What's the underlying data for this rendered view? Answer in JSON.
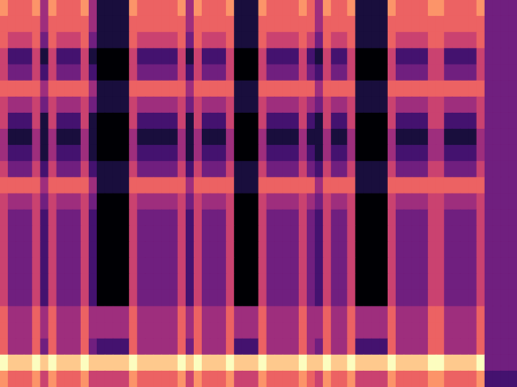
{
  "chart_data": {
    "type": "heatmap",
    "tick_labels": false,
    "zlim": [
      0,
      9
    ],
    "cells": [
      [
        7,
        6,
        6,
        6,
        7,
        4,
        7,
        6,
        6,
        6,
        7,
        4,
        1,
        1,
        1,
        1,
        7,
        6,
        6,
        6,
        6,
        6,
        7,
        4,
        7,
        6,
        6,
        6,
        7,
        1,
        1,
        1,
        7,
        6,
        6,
        6,
        6,
        7,
        6,
        4,
        7,
        6,
        6,
        7,
        1,
        1,
        1,
        1,
        7,
        6,
        6,
        6,
        6,
        7,
        7,
        6,
        6,
        6,
        6,
        7,
        3,
        3,
        3,
        3
      ],
      [
        6,
        6,
        6,
        6,
        6,
        4,
        6,
        6,
        6,
        6,
        6,
        4,
        1,
        1,
        1,
        1,
        6,
        6,
        6,
        6,
        6,
        6,
        6,
        4,
        6,
        6,
        6,
        6,
        6,
        1,
        1,
        1,
        6,
        6,
        6,
        6,
        6,
        6,
        6,
        4,
        6,
        6,
        6,
        6,
        1,
        1,
        1,
        1,
        6,
        6,
        6,
        6,
        6,
        6,
        6,
        6,
        6,
        6,
        6,
        6,
        3,
        3,
        3,
        3
      ],
      [
        6,
        5,
        5,
        5,
        6,
        3,
        6,
        5,
        5,
        5,
        6,
        3,
        1,
        1,
        1,
        1,
        6,
        5,
        5,
        5,
        5,
        5,
        6,
        3,
        6,
        5,
        5,
        5,
        6,
        1,
        1,
        1,
        6,
        5,
        5,
        5,
        5,
        6,
        5,
        3,
        6,
        5,
        5,
        6,
        1,
        1,
        1,
        1,
        6,
        5,
        5,
        5,
        5,
        6,
        6,
        5,
        5,
        5,
        5,
        6,
        3,
        3,
        3,
        3
      ],
      [
        5,
        2,
        2,
        2,
        5,
        1,
        5,
        2,
        2,
        2,
        5,
        1,
        0,
        0,
        0,
        0,
        5,
        2,
        2,
        2,
        2,
        2,
        5,
        1,
        5,
        2,
        2,
        2,
        5,
        0,
        0,
        0,
        5,
        2,
        2,
        2,
        2,
        5,
        2,
        1,
        5,
        2,
        2,
        5,
        0,
        0,
        0,
        0,
        5,
        2,
        2,
        2,
        2,
        5,
        5,
        2,
        2,
        2,
        2,
        5,
        3,
        3,
        3,
        3
      ],
      [
        5,
        3,
        3,
        3,
        5,
        2,
        5,
        3,
        3,
        3,
        5,
        2,
        0,
        0,
        0,
        0,
        5,
        3,
        3,
        3,
        3,
        3,
        5,
        2,
        5,
        3,
        3,
        3,
        5,
        0,
        0,
        0,
        5,
        3,
        3,
        3,
        3,
        5,
        3,
        2,
        5,
        3,
        3,
        5,
        0,
        0,
        0,
        0,
        5,
        3,
        3,
        3,
        3,
        5,
        5,
        3,
        3,
        3,
        3,
        5,
        3,
        3,
        3,
        3
      ],
      [
        6,
        6,
        6,
        6,
        6,
        4,
        6,
        6,
        6,
        6,
        6,
        4,
        1,
        1,
        1,
        1,
        6,
        6,
        6,
        6,
        6,
        6,
        6,
        4,
        6,
        6,
        6,
        6,
        6,
        1,
        1,
        1,
        6,
        6,
        6,
        6,
        6,
        6,
        6,
        4,
        6,
        6,
        6,
        6,
        1,
        1,
        1,
        1,
        6,
        6,
        6,
        6,
        6,
        6,
        6,
        6,
        6,
        6,
        6,
        6,
        3,
        3,
        3,
        3
      ],
      [
        5,
        4,
        4,
        4,
        5,
        3,
        5,
        4,
        4,
        4,
        5,
        3,
        1,
        1,
        1,
        1,
        5,
        4,
        4,
        4,
        4,
        4,
        5,
        3,
        5,
        4,
        4,
        4,
        5,
        1,
        1,
        1,
        5,
        4,
        4,
        4,
        4,
        5,
        4,
        3,
        5,
        4,
        4,
        5,
        1,
        1,
        1,
        1,
        5,
        4,
        4,
        4,
        4,
        5,
        5,
        4,
        4,
        4,
        4,
        5,
        3,
        3,
        3,
        3
      ],
      [
        5,
        2,
        2,
        2,
        5,
        1,
        5,
        2,
        2,
        2,
        5,
        1,
        0,
        0,
        0,
        0,
        5,
        2,
        2,
        2,
        2,
        2,
        5,
        1,
        5,
        2,
        2,
        2,
        5,
        0,
        0,
        0,
        5,
        2,
        2,
        2,
        2,
        5,
        2,
        1,
        5,
        2,
        2,
        5,
        0,
        0,
        0,
        0,
        5,
        2,
        2,
        2,
        2,
        5,
        5,
        2,
        2,
        2,
        2,
        5,
        3,
        3,
        3,
        3
      ],
      [
        4,
        1,
        1,
        1,
        4,
        1,
        4,
        1,
        1,
        1,
        4,
        1,
        0,
        0,
        0,
        0,
        4,
        1,
        1,
        1,
        1,
        1,
        4,
        1,
        4,
        1,
        1,
        1,
        4,
        0,
        0,
        0,
        4,
        1,
        1,
        1,
        1,
        4,
        1,
        1,
        4,
        1,
        1,
        4,
        0,
        0,
        0,
        0,
        4,
        1,
        1,
        1,
        1,
        4,
        4,
        1,
        1,
        1,
        1,
        4,
        3,
        3,
        3,
        3
      ],
      [
        4,
        2,
        2,
        2,
        4,
        1,
        4,
        2,
        2,
        2,
        4,
        1,
        0,
        0,
        0,
        0,
        4,
        2,
        2,
        2,
        2,
        2,
        4,
        1,
        4,
        2,
        2,
        2,
        4,
        0,
        0,
        0,
        4,
        2,
        2,
        2,
        2,
        4,
        2,
        1,
        4,
        2,
        2,
        4,
        0,
        0,
        0,
        0,
        4,
        2,
        2,
        2,
        2,
        4,
        4,
        2,
        2,
        2,
        2,
        4,
        3,
        3,
        3,
        3
      ],
      [
        5,
        3,
        3,
        3,
        5,
        2,
        5,
        3,
        3,
        3,
        5,
        2,
        1,
        1,
        1,
        1,
        5,
        3,
        3,
        3,
        3,
        3,
        5,
        2,
        5,
        3,
        3,
        3,
        5,
        1,
        1,
        1,
        5,
        3,
        3,
        3,
        3,
        5,
        3,
        2,
        5,
        3,
        3,
        5,
        1,
        1,
        1,
        1,
        5,
        3,
        3,
        3,
        3,
        5,
        5,
        3,
        3,
        3,
        3,
        5,
        3,
        3,
        3,
        3
      ],
      [
        6,
        6,
        6,
        6,
        6,
        4,
        6,
        6,
        6,
        6,
        6,
        4,
        1,
        1,
        1,
        1,
        6,
        6,
        6,
        6,
        6,
        6,
        6,
        4,
        6,
        6,
        6,
        6,
        6,
        1,
        1,
        1,
        6,
        6,
        6,
        6,
        6,
        6,
        6,
        4,
        6,
        6,
        6,
        6,
        1,
        1,
        1,
        1,
        6,
        6,
        6,
        6,
        6,
        6,
        6,
        6,
        6,
        6,
        6,
        6,
        3,
        3,
        3,
        3
      ],
      [
        5,
        4,
        4,
        4,
        5,
        3,
        5,
        4,
        4,
        4,
        5,
        3,
        0,
        0,
        0,
        0,
        5,
        4,
        4,
        4,
        4,
        4,
        5,
        3,
        5,
        4,
        4,
        4,
        5,
        0,
        0,
        0,
        5,
        4,
        4,
        4,
        4,
        5,
        4,
        3,
        5,
        4,
        4,
        5,
        0,
        0,
        0,
        0,
        5,
        4,
        4,
        4,
        4,
        5,
        5,
        4,
        4,
        4,
        4,
        5,
        3,
        3,
        3,
        3
      ],
      [
        5,
        3,
        3,
        3,
        5,
        2,
        5,
        3,
        3,
        3,
        5,
        2,
        0,
        0,
        0,
        0,
        5,
        3,
        3,
        3,
        3,
        3,
        5,
        2,
        5,
        3,
        3,
        3,
        5,
        0,
        0,
        0,
        5,
        3,
        3,
        3,
        3,
        5,
        3,
        2,
        5,
        3,
        3,
        5,
        0,
        0,
        0,
        0,
        5,
        3,
        3,
        3,
        3,
        5,
        5,
        3,
        3,
        3,
        3,
        5,
        3,
        3,
        3,
        3
      ],
      [
        5,
        3,
        3,
        3,
        5,
        2,
        5,
        3,
        3,
        3,
        5,
        2,
        0,
        0,
        0,
        0,
        5,
        3,
        3,
        3,
        3,
        3,
        5,
        2,
        5,
        3,
        3,
        3,
        5,
        0,
        0,
        0,
        5,
        3,
        3,
        3,
        3,
        5,
        3,
        2,
        5,
        3,
        3,
        5,
        0,
        0,
        0,
        0,
        5,
        3,
        3,
        3,
        3,
        5,
        5,
        3,
        3,
        3,
        3,
        5,
        3,
        3,
        3,
        3
      ],
      [
        5,
        3,
        3,
        3,
        5,
        2,
        5,
        3,
        3,
        3,
        5,
        2,
        0,
        0,
        0,
        0,
        5,
        3,
        3,
        3,
        3,
        3,
        5,
        2,
        5,
        3,
        3,
        3,
        5,
        0,
        0,
        0,
        5,
        3,
        3,
        3,
        3,
        5,
        3,
        2,
        5,
        3,
        3,
        5,
        0,
        0,
        0,
        0,
        5,
        3,
        3,
        3,
        3,
        5,
        5,
        3,
        3,
        3,
        3,
        5,
        3,
        3,
        3,
        3
      ],
      [
        5,
        3,
        3,
        3,
        5,
        2,
        5,
        3,
        3,
        3,
        5,
        2,
        0,
        0,
        0,
        0,
        5,
        3,
        3,
        3,
        3,
        3,
        5,
        2,
        5,
        3,
        3,
        3,
        5,
        0,
        0,
        0,
        5,
        3,
        3,
        3,
        3,
        5,
        3,
        2,
        5,
        3,
        3,
        5,
        0,
        0,
        0,
        0,
        5,
        3,
        3,
        3,
        3,
        5,
        5,
        3,
        3,
        3,
        3,
        5,
        3,
        3,
        3,
        3
      ],
      [
        5,
        3,
        3,
        3,
        5,
        2,
        5,
        3,
        3,
        3,
        5,
        2,
        0,
        0,
        0,
        0,
        5,
        3,
        3,
        3,
        3,
        3,
        5,
        2,
        5,
        3,
        3,
        3,
        5,
        0,
        0,
        0,
        5,
        3,
        3,
        3,
        3,
        5,
        3,
        2,
        5,
        3,
        3,
        5,
        0,
        0,
        0,
        0,
        5,
        3,
        3,
        3,
        3,
        5,
        5,
        3,
        3,
        3,
        3,
        5,
        3,
        3,
        3,
        3
      ],
      [
        5,
        3,
        3,
        3,
        5,
        2,
        5,
        3,
        3,
        3,
        5,
        2,
        0,
        0,
        0,
        0,
        5,
        3,
        3,
        3,
        3,
        3,
        5,
        2,
        5,
        3,
        3,
        3,
        5,
        0,
        0,
        0,
        5,
        3,
        3,
        3,
        3,
        5,
        3,
        2,
        5,
        3,
        3,
        5,
        0,
        0,
        0,
        0,
        5,
        3,
        3,
        3,
        3,
        5,
        5,
        3,
        3,
        3,
        3,
        5,
        3,
        3,
        3,
        3
      ],
      [
        6,
        4,
        4,
        4,
        6,
        4,
        6,
        4,
        4,
        4,
        6,
        4,
        4,
        4,
        4,
        4,
        6,
        4,
        4,
        4,
        4,
        4,
        6,
        4,
        6,
        4,
        4,
        4,
        6,
        4,
        4,
        4,
        6,
        4,
        4,
        4,
        4,
        6,
        4,
        4,
        6,
        4,
        4,
        6,
        4,
        4,
        4,
        4,
        6,
        4,
        4,
        4,
        4,
        6,
        6,
        4,
        4,
        4,
        4,
        6,
        3,
        3,
        3,
        3
      ],
      [
        6,
        4,
        4,
        4,
        6,
        4,
        6,
        4,
        4,
        4,
        6,
        4,
        4,
        4,
        4,
        4,
        6,
        4,
        4,
        4,
        4,
        4,
        6,
        4,
        6,
        4,
        4,
        4,
        6,
        4,
        4,
        4,
        6,
        4,
        4,
        4,
        4,
        6,
        4,
        4,
        6,
        4,
        4,
        6,
        4,
        4,
        4,
        4,
        6,
        4,
        4,
        4,
        4,
        6,
        6,
        4,
        4,
        4,
        4,
        6,
        3,
        3,
        3,
        3
      ],
      [
        6,
        4,
        4,
        4,
        6,
        3,
        6,
        4,
        4,
        4,
        6,
        3,
        2,
        2,
        2,
        2,
        6,
        4,
        4,
        4,
        4,
        4,
        6,
        3,
        6,
        4,
        4,
        4,
        6,
        2,
        2,
        2,
        6,
        4,
        4,
        4,
        4,
        6,
        4,
        3,
        6,
        4,
        4,
        6,
        2,
        2,
        2,
        2,
        6,
        4,
        4,
        4,
        4,
        6,
        6,
        4,
        4,
        4,
        4,
        6,
        3,
        3,
        3,
        3
      ],
      [
        9,
        8,
        8,
        8,
        9,
        8,
        9,
        8,
        8,
        8,
        9,
        8,
        8,
        8,
        8,
        8,
        9,
        8,
        8,
        8,
        8,
        8,
        9,
        8,
        9,
        8,
        8,
        8,
        9,
        8,
        8,
        8,
        9,
        8,
        8,
        8,
        8,
        9,
        8,
        8,
        9,
        8,
        8,
        9,
        8,
        8,
        8,
        8,
        9,
        8,
        8,
        8,
        8,
        9,
        9,
        8,
        8,
        8,
        8,
        9,
        3,
        3,
        3,
        3
      ],
      [
        7,
        6,
        6,
        6,
        7,
        5,
        7,
        6,
        6,
        6,
        7,
        5,
        5,
        5,
        5,
        5,
        7,
        6,
        6,
        6,
        6,
        6,
        7,
        5,
        7,
        6,
        6,
        6,
        7,
        5,
        5,
        5,
        7,
        6,
        6,
        6,
        6,
        7,
        6,
        5,
        7,
        6,
        6,
        7,
        5,
        5,
        5,
        5,
        7,
        6,
        6,
        6,
        6,
        7,
        7,
        6,
        6,
        6,
        6,
        7,
        2,
        2,
        2,
        2
      ]
    ]
  }
}
